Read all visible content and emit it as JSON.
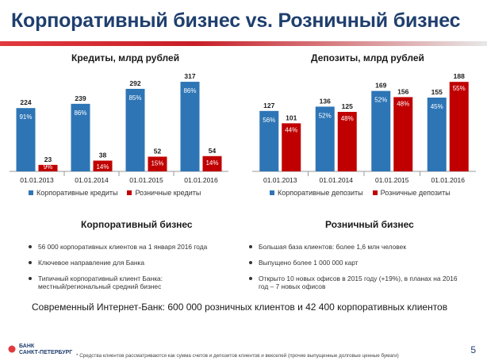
{
  "header": {
    "title": "Корпоративный бизнес vs. Розничный бизнес"
  },
  "colors": {
    "corporate": "#2e75b6",
    "retail": "#c00000",
    "brand_red": "#e03a3f",
    "brand_blue": "#1f3f6e"
  },
  "chart_data": [
    {
      "type": "bar",
      "title": "Кредиты, млрд рублей",
      "categories": [
        "01.01.2013",
        "01.01.2014",
        "01.01.2015",
        "01.01.2016"
      ],
      "ylim": [
        0,
        320
      ],
      "series": [
        {
          "name": "Корпоративные кредиты",
          "values": [
            224,
            239,
            292,
            317
          ],
          "share_labels": [
            "91%",
            "86%",
            "85%",
            "86%"
          ]
        },
        {
          "name": "Розничные кредиты",
          "values": [
            23,
            38,
            52,
            54
          ],
          "share_labels": [
            "9%",
            "14%",
            "15%",
            "14%"
          ]
        }
      ],
      "legend": "bottom"
    },
    {
      "type": "bar",
      "title": "Депозиты, млрд рублей",
      "categories": [
        "01.01.2013",
        "01.01.2014",
        "01.01.2015",
        "01.01.2016"
      ],
      "ylim": [
        0,
        190
      ],
      "series": [
        {
          "name": "Корпоративные депозиты",
          "values": [
            127,
            136,
            169,
            155
          ],
          "share_labels": [
            "56%",
            "52%",
            "52%",
            "45%"
          ]
        },
        {
          "name": "Розничные депозиты",
          "values": [
            101,
            125,
            156,
            188
          ],
          "share_labels": [
            "44%",
            "48%",
            "48%",
            "55%"
          ]
        }
      ],
      "legend": "bottom"
    }
  ],
  "corporate": {
    "title": "Корпоративный бизнес",
    "bullets": [
      "56 000 корпоративных клиентов на 1 января 2016 года",
      "Ключевое направление для Банка",
      "Типичный корпоративный клиент Банка:\nместный/региональный средний бизнес"
    ]
  },
  "retail": {
    "title": "Розничный бизнес",
    "bullets": [
      "Большая база клиентов: более 1,6 млн человек",
      "Выпущено более 1 000 000 карт",
      "Открыто 10 новых офисов в 2015 году (+19%), в планах на 2016\nгод – 7 новых офисов"
    ]
  },
  "internet_bank": "Современный Интернет-Банк: 600 000 розничных клиентов и 42 400 корпоративных клиентов",
  "footer": {
    "logo_line1": "БАНК",
    "logo_line2": "САНКТ-ПЕТЕРБУРГ",
    "footnote": "* Средства клиентов рассматриваются как сумма счетов и депозитов клиентов и векселей (прочие выпущенные долговые ценные бумаги)",
    "page_number": "5"
  }
}
